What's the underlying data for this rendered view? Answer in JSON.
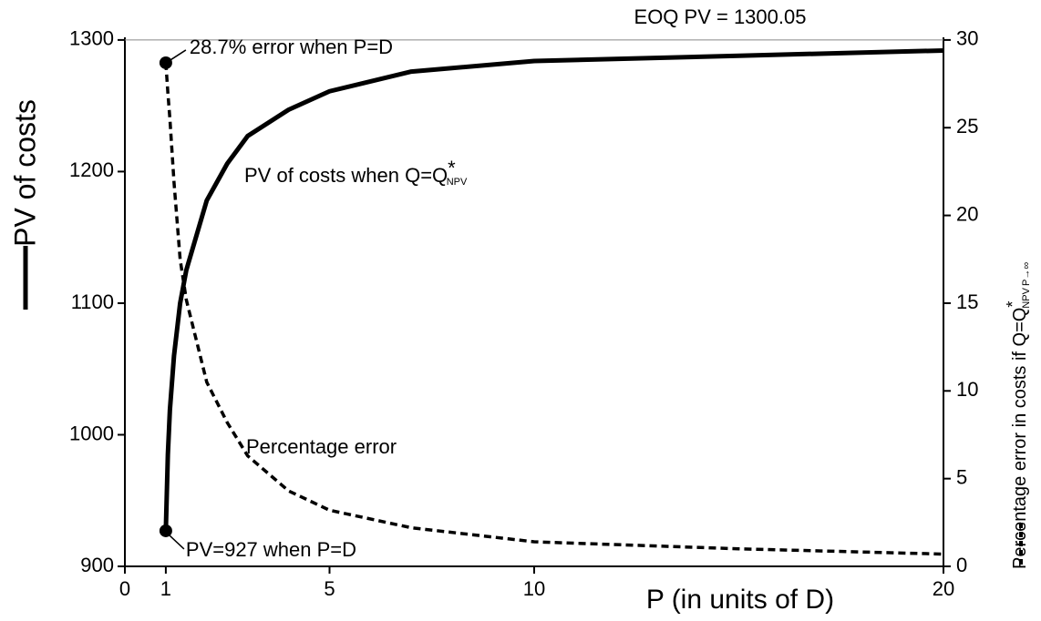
{
  "chart_data": {
    "type": "line",
    "title": "EOQ PV = 1300.05",
    "eoq_pv": 1300.05,
    "xlabel": "P (in units of D)",
    "ylabel": "PV of costs",
    "y2label": {
      "main": "Percentage error in costs if Q=Q",
      "sup": "*",
      "sub": "NPV",
      "cond": "P→∞"
    },
    "x": [
      1,
      1.05,
      1.1,
      1.2,
      1.35,
      1.5,
      2,
      2.5,
      3,
      4,
      5,
      7,
      10,
      15,
      20
    ],
    "series": [
      {
        "name": "PV of costs",
        "color": "#000000",
        "dash": false,
        "values": [
          927,
          985,
          1019,
          1060,
          1100,
          1125,
          1178,
          1206,
          1227,
          1247,
          1261,
          1276,
          1284,
          1288,
          1292
        ]
      },
      {
        "name": "Percentage error",
        "color": "#000000",
        "dash": true,
        "axis": "y2",
        "values": [
          28.7,
          27,
          25.5,
          21.9,
          17.5,
          15.2,
          10.5,
          8.2,
          6.3,
          4.3,
          3.2,
          2.2,
          1.4,
          1.0,
          0.7
        ]
      }
    ],
    "annotations": {
      "err_start": "28.7% error when P=D",
      "pv_start": "PV=927 when P=D",
      "pv_curve": {
        "main": "PV of costs when Q=Q",
        "sup": "*",
        "sub": "NPV"
      },
      "err_curve": "Percentage error"
    },
    "xlim": [
      0,
      20
    ],
    "xticks": [
      0,
      1,
      5,
      10,
      20
    ],
    "ylim": [
      900,
      1302
    ],
    "yticks": [
      900,
      1000,
      1100,
      1200,
      1300
    ],
    "y2lim": [
      0,
      30.15
    ],
    "y2ticks": [
      0,
      5,
      10,
      15,
      20,
      25,
      30
    ]
  }
}
